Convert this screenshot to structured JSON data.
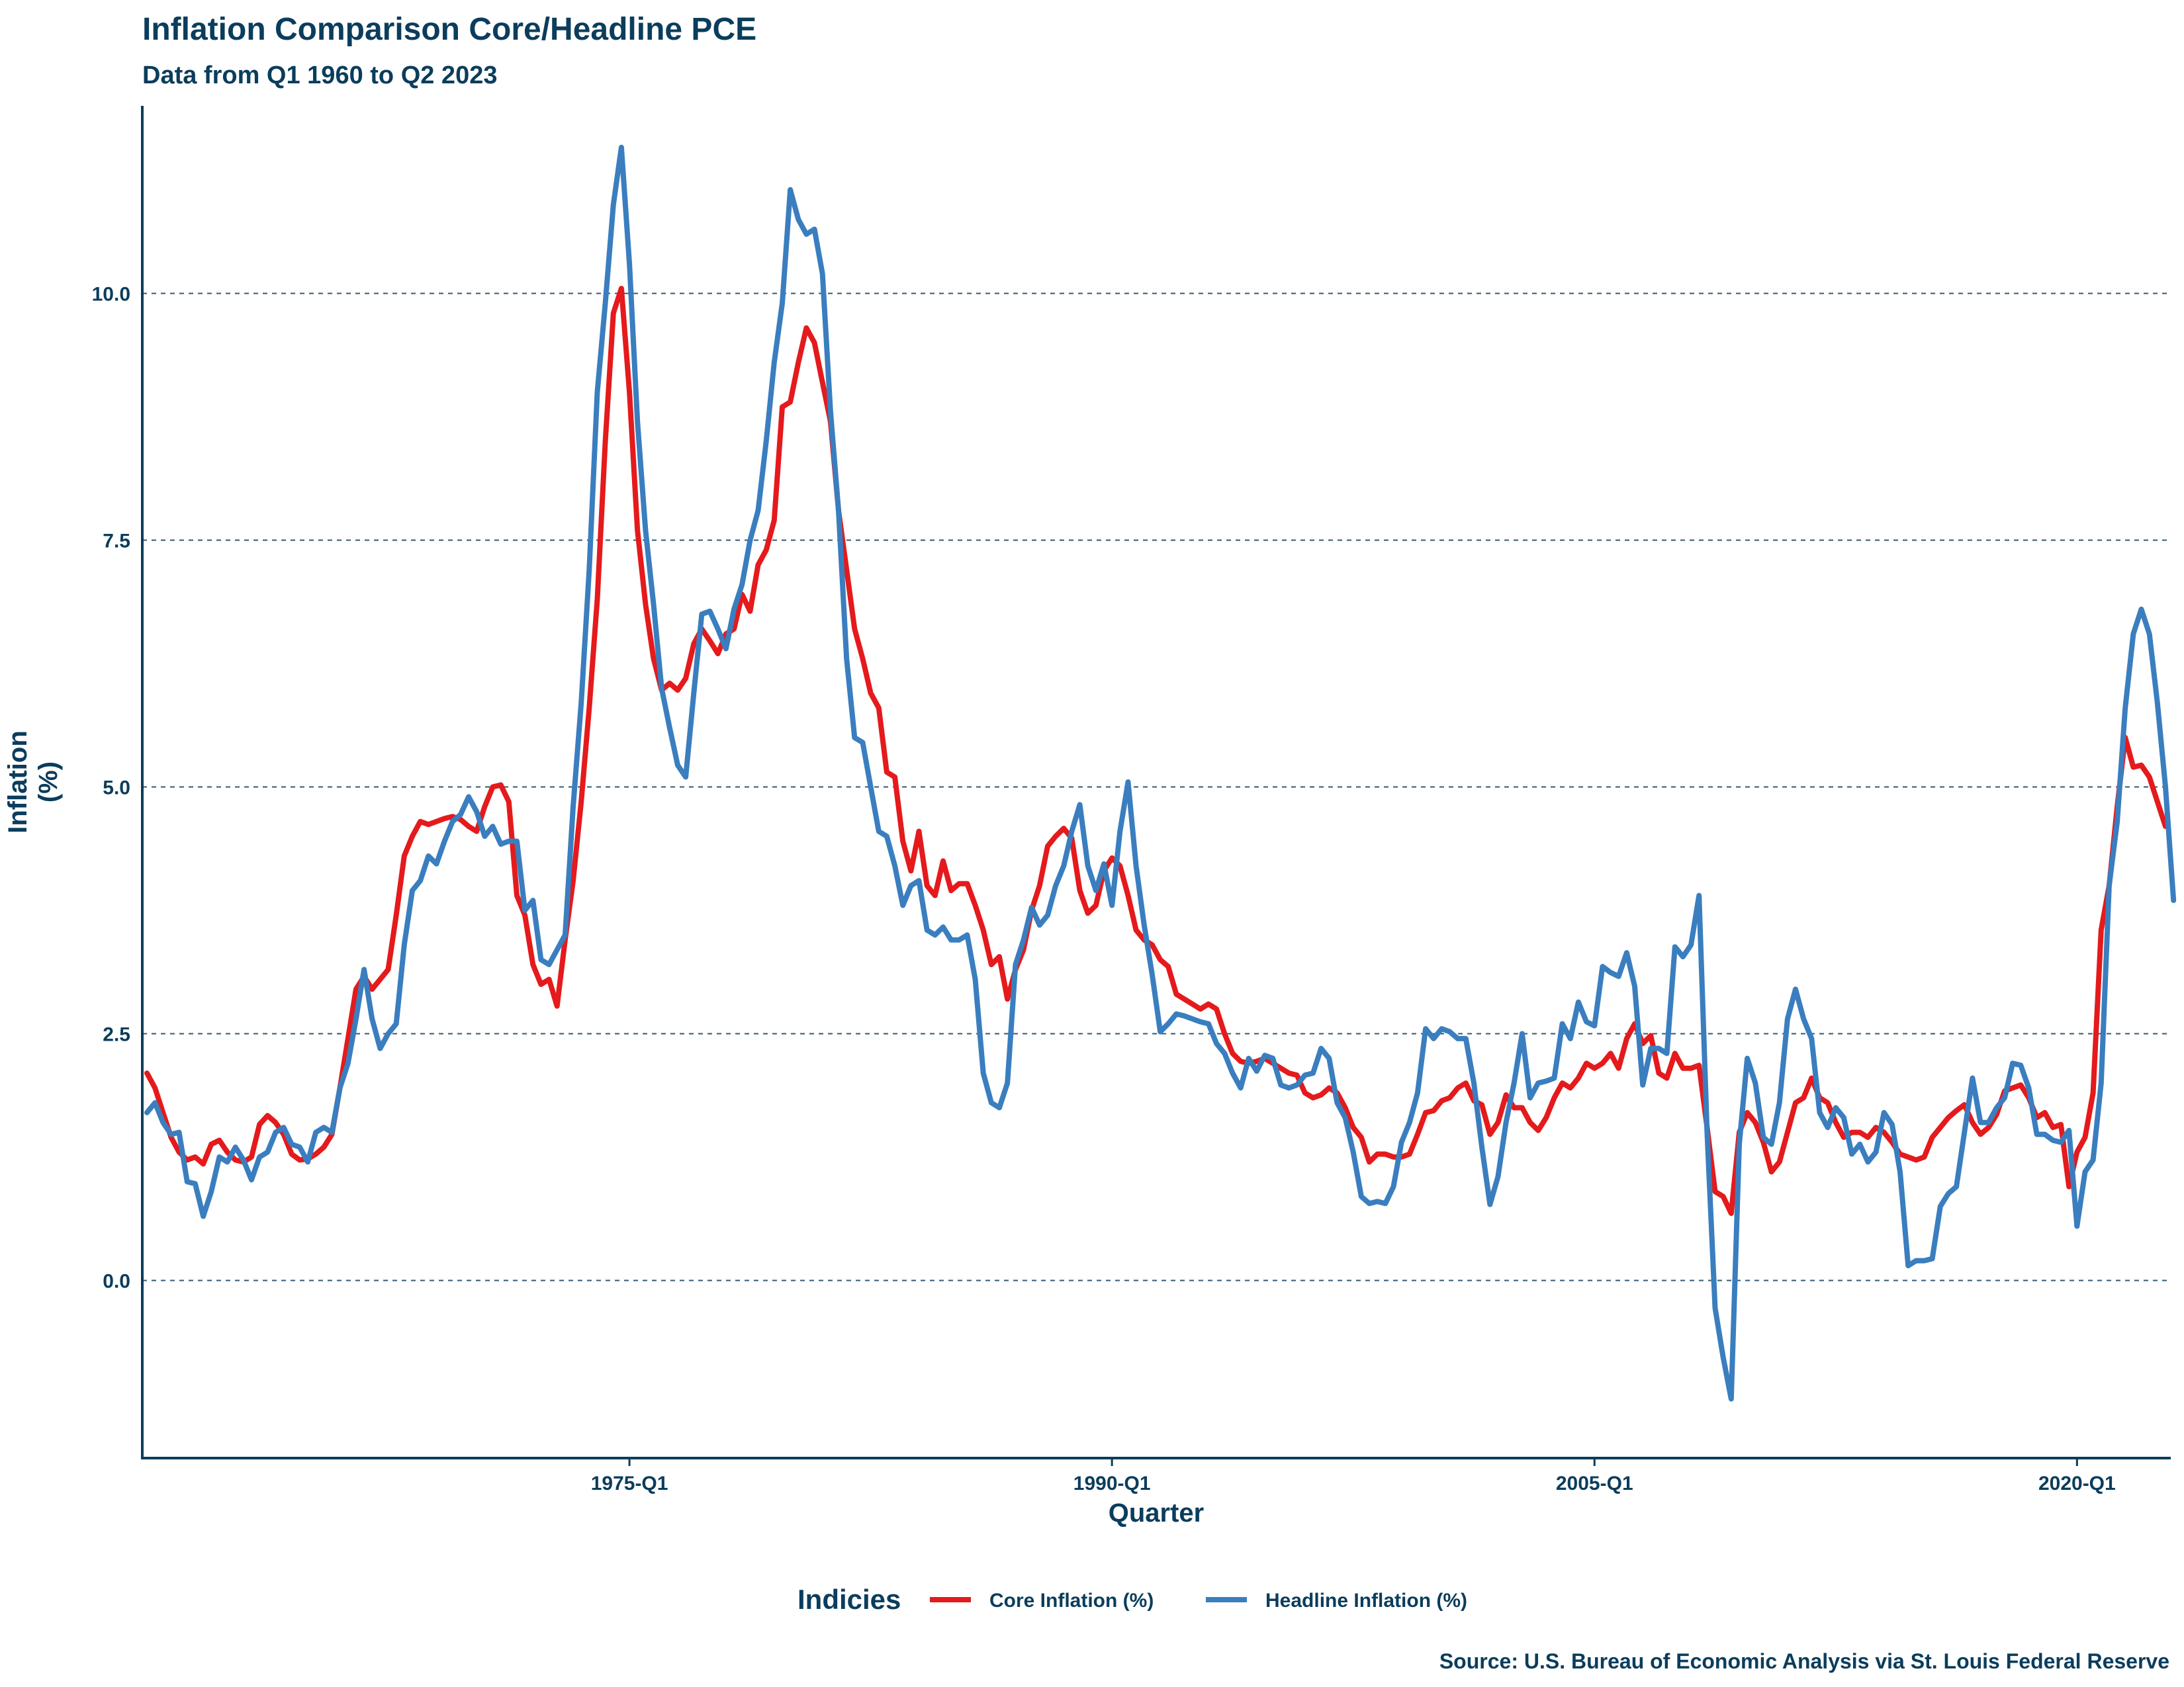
{
  "chart_data": {
    "type": "line",
    "title": "Inflation Comparison Core/Headline PCE",
    "subtitle": "Data from Q1 1960 to Q2 2023",
    "xlabel": "Quarter",
    "ylabel": "Inflation\n(%)",
    "ylim": [
      -1.8,
      11.9
    ],
    "yticks": [
      0.0,
      2.5,
      5.0,
      7.5,
      10.0
    ],
    "ytick_labels": [
      "0.0",
      "2.5",
      "5.0",
      "7.5",
      "10.0"
    ],
    "xticks": [
      "1975-Q1",
      "1990-Q1",
      "2005-Q1",
      "2020-Q1"
    ],
    "x_start": "1960-Q1",
    "grid": "horizontal dashed",
    "legend_title": "Indicies",
    "legend_position": "bottom",
    "caption": "Source: U.S. Bureau of Economic Analysis via St. Louis Federal Reserve",
    "series": [
      {
        "name": "Core Inflation (%)",
        "color": "#e41a1c",
        "values": [
          2.1,
          1.95,
          1.7,
          1.45,
          1.3,
          1.22,
          1.25,
          1.18,
          1.38,
          1.42,
          1.3,
          1.22,
          1.2,
          1.25,
          1.58,
          1.67,
          1.6,
          1.48,
          1.28,
          1.22,
          1.23,
          1.28,
          1.35,
          1.48,
          1.95,
          2.45,
          2.95,
          3.08,
          2.95,
          3.05,
          3.15,
          3.7,
          4.3,
          4.5,
          4.65,
          4.62,
          4.65,
          4.68,
          4.7,
          4.67,
          4.6,
          4.55,
          4.8,
          5.0,
          5.02,
          4.85,
          3.9,
          3.7,
          3.2,
          3.0,
          3.05,
          2.78,
          3.45,
          4.05,
          4.85,
          5.8,
          6.9,
          8.5,
          9.8,
          10.05,
          9.0,
          7.6,
          6.85,
          6.3,
          5.98,
          6.05,
          5.98,
          6.1,
          6.45,
          6.6,
          6.48,
          6.35,
          6.55,
          6.6,
          6.95,
          6.78,
          7.25,
          7.4,
          7.7,
          8.85,
          8.9,
          9.3,
          9.65,
          9.5,
          9.1,
          8.7,
          7.8,
          7.2,
          6.6,
          6.3,
          5.95,
          5.8,
          5.15,
          5.1,
          4.45,
          4.15,
          4.55,
          4.0,
          3.9,
          4.25,
          3.95,
          4.02,
          4.02,
          3.8,
          3.55,
          3.2,
          3.28,
          2.85,
          3.15,
          3.35,
          3.75,
          4.0,
          4.4,
          4.5,
          4.58,
          4.48,
          3.95,
          3.72,
          3.8,
          4.15,
          4.28,
          4.2,
          3.9,
          3.55,
          3.45,
          3.4,
          3.25,
          3.18,
          2.9,
          2.85,
          2.8,
          2.75,
          2.8,
          2.75,
          2.5,
          2.3,
          2.22,
          2.2,
          2.22,
          2.25,
          2.2,
          2.15,
          2.1,
          2.08,
          1.9,
          1.85,
          1.88,
          1.95,
          1.9,
          1.75,
          1.55,
          1.45,
          1.2,
          1.28,
          1.28,
          1.25,
          1.25,
          1.28,
          1.48,
          1.7,
          1.72,
          1.82,
          1.85,
          1.95,
          2.0,
          1.82,
          1.78,
          1.48,
          1.6,
          1.88,
          1.75,
          1.75,
          1.6,
          1.52,
          1.65,
          1.85,
          2.0,
          1.95,
          2.05,
          2.2,
          2.15,
          2.2,
          2.3,
          2.15,
          2.45,
          2.6,
          2.4,
          2.48,
          2.1,
          2.05,
          2.3,
          2.15,
          2.15,
          2.18,
          1.55,
          0.9,
          0.85,
          0.68,
          1.5,
          1.7,
          1.6,
          1.4,
          1.1,
          1.2,
          1.5,
          1.8,
          1.85,
          2.05,
          1.85,
          1.8,
          1.6,
          1.45,
          1.5,
          1.5,
          1.45,
          1.55,
          1.5,
          1.4,
          1.28,
          1.25,
          1.22,
          1.25,
          1.45,
          1.55,
          1.65,
          1.72,
          1.78,
          1.6,
          1.48,
          1.55,
          1.68,
          1.92,
          1.95,
          1.98,
          1.85,
          1.65,
          1.7,
          1.55,
          1.58,
          0.95,
          1.3,
          1.45,
          1.9,
          3.55,
          4.0,
          4.8,
          5.5,
          5.2,
          5.22,
          5.1,
          4.85,
          4.6
        ]
      },
      {
        "name": "Headline Inflation (%)",
        "color": "#3a7ebf",
        "values": [
          1.7,
          1.8,
          1.6,
          1.48,
          1.5,
          1.0,
          0.98,
          0.65,
          0.9,
          1.25,
          1.2,
          1.35,
          1.22,
          1.02,
          1.25,
          1.3,
          1.5,
          1.55,
          1.38,
          1.35,
          1.2,
          1.5,
          1.55,
          1.5,
          1.95,
          2.2,
          2.65,
          3.15,
          2.65,
          2.35,
          2.5,
          2.6,
          3.4,
          3.95,
          4.05,
          4.3,
          4.22,
          4.45,
          4.65,
          4.72,
          4.9,
          4.75,
          4.5,
          4.6,
          4.42,
          4.45,
          4.45,
          3.75,
          3.85,
          3.25,
          3.2,
          3.35,
          3.5,
          4.8,
          5.85,
          7.2,
          9.0,
          9.9,
          10.9,
          11.48,
          10.3,
          8.7,
          7.6,
          6.85,
          6.0,
          5.6,
          5.22,
          5.1,
          5.95,
          6.75,
          6.78,
          6.6,
          6.4,
          6.8,
          7.05,
          7.5,
          7.8,
          8.5,
          9.3,
          9.9,
          11.05,
          10.75,
          10.6,
          10.65,
          10.2,
          8.8,
          7.8,
          6.3,
          5.5,
          5.45,
          5.0,
          4.55,
          4.5,
          4.2,
          3.8,
          4.0,
          4.05,
          3.55,
          3.5,
          3.58,
          3.45,
          3.45,
          3.5,
          3.05,
          2.1,
          1.8,
          1.75,
          2.0,
          3.2,
          3.45,
          3.78,
          3.6,
          3.7,
          4.0,
          4.2,
          4.55,
          4.82,
          4.2,
          3.95,
          4.22,
          3.8,
          4.55,
          5.05,
          4.2,
          3.6,
          3.1,
          2.52,
          2.6,
          2.7,
          2.68,
          2.65,
          2.62,
          2.6,
          2.4,
          2.3,
          2.1,
          1.95,
          2.25,
          2.12,
          2.28,
          2.25,
          1.98,
          1.95,
          1.98,
          2.08,
          2.1,
          2.35,
          2.25,
          1.8,
          1.65,
          1.3,
          0.85,
          0.78,
          0.8,
          0.78,
          0.95,
          1.4,
          1.6,
          1.9,
          2.55,
          2.45,
          2.55,
          2.52,
          2.45,
          2.45,
          2.0,
          1.35,
          0.77,
          1.05,
          1.6,
          2.0,
          2.5,
          1.85,
          2.0,
          2.02,
          2.05,
          2.6,
          2.45,
          2.82,
          2.62,
          2.58,
          3.18,
          3.12,
          3.08,
          3.32,
          2.98,
          1.98,
          2.35,
          2.35,
          2.3,
          3.38,
          3.28,
          3.4,
          3.9,
          1.5,
          -0.28,
          -0.78,
          -1.2,
          1.38,
          2.25,
          2.0,
          1.45,
          1.38,
          1.8,
          2.65,
          2.95,
          2.65,
          2.45,
          1.7,
          1.55,
          1.75,
          1.65,
          1.28,
          1.38,
          1.2,
          1.3,
          1.7,
          1.58,
          1.1,
          0.15,
          0.2,
          0.2,
          0.22,
          0.75,
          0.88,
          0.95,
          1.5,
          2.05,
          1.6,
          1.6,
          1.75,
          1.85,
          2.2,
          2.18,
          1.95,
          1.48,
          1.48,
          1.42,
          1.4,
          1.52,
          0.55,
          1.1,
          1.22,
          2.0,
          4.0,
          4.65,
          5.8,
          6.55,
          6.8,
          6.55,
          5.85,
          5.0,
          3.85
        ]
      }
    ]
  }
}
